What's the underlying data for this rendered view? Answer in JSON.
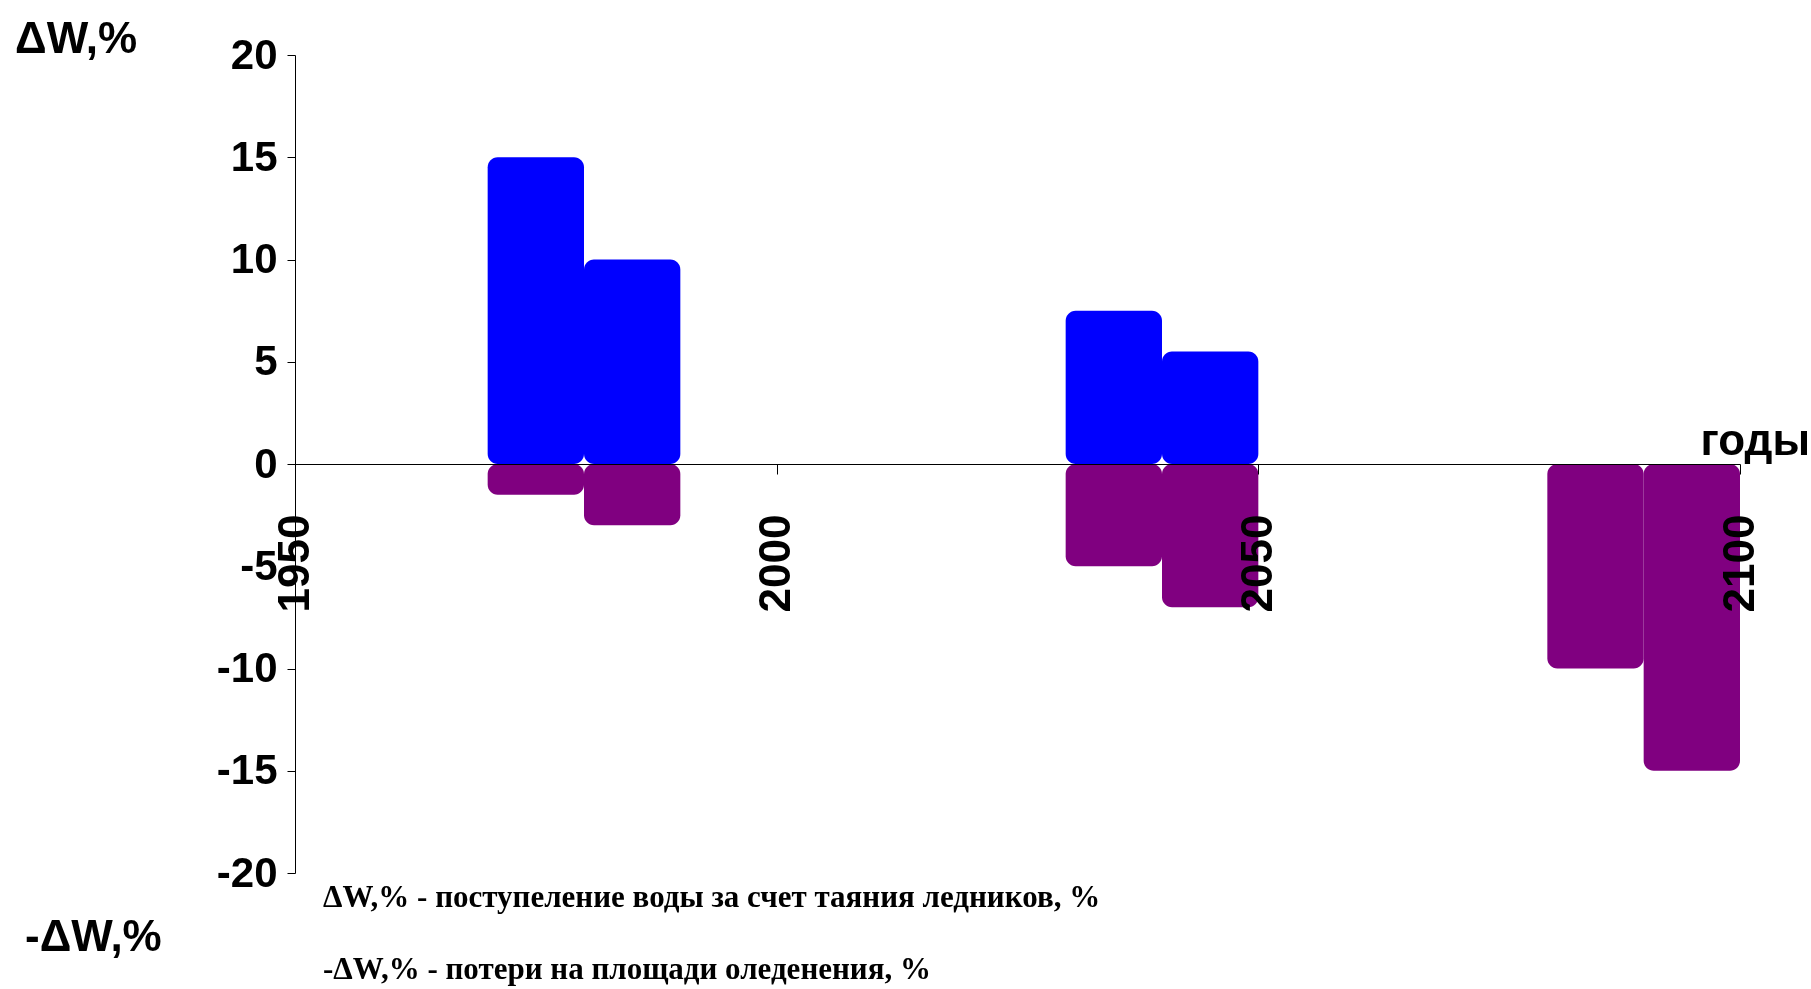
{
  "chart_data": {
    "type": "bar",
    "ylabel": "ΔW,%",
    "xlabel": "годы",
    "x": [
      1975,
      1985,
      2035,
      2045,
      2085,
      2095
    ],
    "series": [
      {
        "color": "#0000ff",
        "values": [
          15,
          10,
          7.5,
          5.5,
          null,
          null
        ]
      },
      {
        "color": "#800080",
        "values": [
          -1.5,
          -3,
          -5,
          -7,
          -10,
          -15
        ]
      }
    ],
    "xlim": [
      1950,
      2100
    ],
    "xticks": [
      1950,
      2000,
      2050,
      2100
    ],
    "ylim": [
      -20,
      20
    ],
    "yticks": [
      -20,
      -15,
      -10,
      -5,
      0,
      5,
      10,
      15,
      20
    ],
    "annotations": [
      "-ΔW,%",
      "ΔW,% - поступеление воды за счет таяния ледников, %",
      "-ΔW,% - потери на площади оледенения, %"
    ],
    "stacked": true,
    "grid": false
  }
}
